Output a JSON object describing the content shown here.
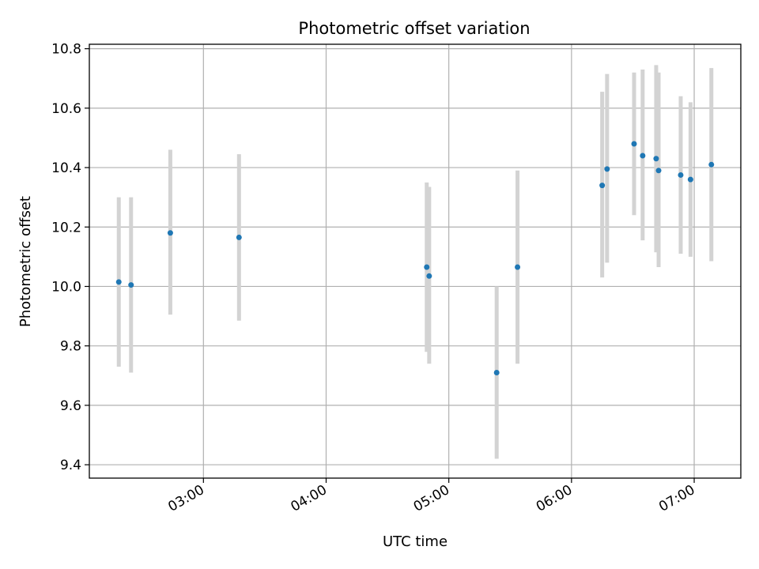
{
  "chart_data": {
    "type": "scatter",
    "title": "Photometric offset variation",
    "xlabel": "UTC time",
    "ylabel": "Photometric offset",
    "x_unit": "UTC hours",
    "xlim": [
      2.07,
      7.38
    ],
    "ylim": [
      9.355,
      10.815
    ],
    "grid": true,
    "x_ticks": [
      {
        "value": 3,
        "label": "03:00"
      },
      {
        "value": 4,
        "label": "04:00"
      },
      {
        "value": 5,
        "label": "05:00"
      },
      {
        "value": 6,
        "label": "06:00"
      },
      {
        "value": 7,
        "label": "07:00"
      }
    ],
    "y_ticks": [
      {
        "value": 9.4,
        "label": "9.4"
      },
      {
        "value": 9.6,
        "label": "9.6"
      },
      {
        "value": 9.8,
        "label": "9.8"
      },
      {
        "value": 10.0,
        "label": "10.0"
      },
      {
        "value": 10.2,
        "label": "10.2"
      },
      {
        "value": 10.4,
        "label": "10.4"
      },
      {
        "value": 10.6,
        "label": "10.6"
      },
      {
        "value": 10.8,
        "label": "10.8"
      }
    ],
    "marker_color": "#1f77b4",
    "errorbar_color": "#d3d3d3",
    "points": [
      {
        "time": "02:19",
        "x": 2.31,
        "y": 10.015,
        "y_low": 9.73,
        "y_high": 10.3
      },
      {
        "time": "02:25",
        "x": 2.41,
        "y": 10.005,
        "y_low": 9.71,
        "y_high": 10.3
      },
      {
        "time": "02:44",
        "x": 2.73,
        "y": 10.18,
        "y_low": 9.905,
        "y_high": 10.46
      },
      {
        "time": "03:17",
        "x": 3.29,
        "y": 10.165,
        "y_low": 9.885,
        "y_high": 10.445
      },
      {
        "time": "04:49",
        "x": 4.82,
        "y": 10.065,
        "y_low": 9.78,
        "y_high": 10.35
      },
      {
        "time": "04:50",
        "x": 4.84,
        "y": 10.035,
        "y_low": 9.74,
        "y_high": 10.335
      },
      {
        "time": "05:24",
        "x": 5.39,
        "y": 9.71,
        "y_low": 9.42,
        "y_high": 10.0
      },
      {
        "time": "05:33",
        "x": 5.56,
        "y": 10.065,
        "y_low": 9.74,
        "y_high": 10.39
      },
      {
        "time": "06:15",
        "x": 6.25,
        "y": 10.34,
        "y_low": 10.03,
        "y_high": 10.655
      },
      {
        "time": "06:18",
        "x": 6.29,
        "y": 10.395,
        "y_low": 10.08,
        "y_high": 10.715
      },
      {
        "time": "06:30",
        "x": 6.51,
        "y": 10.48,
        "y_low": 10.24,
        "y_high": 10.72
      },
      {
        "time": "06:35",
        "x": 6.58,
        "y": 10.44,
        "y_low": 10.155,
        "y_high": 10.73
      },
      {
        "time": "06:41",
        "x": 6.69,
        "y": 10.43,
        "y_low": 10.115,
        "y_high": 10.745
      },
      {
        "time": "06:42",
        "x": 6.71,
        "y": 10.39,
        "y_low": 10.065,
        "y_high": 10.72
      },
      {
        "time": "06:53",
        "x": 6.89,
        "y": 10.375,
        "y_low": 10.11,
        "y_high": 10.64
      },
      {
        "time": "06:58",
        "x": 6.97,
        "y": 10.36,
        "y_low": 10.1,
        "y_high": 10.62
      },
      {
        "time": "07:08",
        "x": 7.14,
        "y": 10.41,
        "y_low": 10.085,
        "y_high": 10.735
      }
    ]
  }
}
